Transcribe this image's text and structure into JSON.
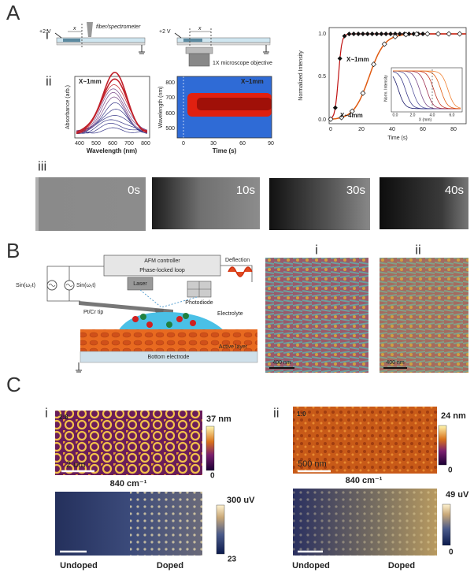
{
  "panel_a": {
    "label": "A",
    "i": {
      "label": "i",
      "setup_fiber": {
        "voltage": "+2 V",
        "x": "x",
        "probe": "fiber/spectrometer"
      },
      "setup_microscope": {
        "voltage": "+2 V",
        "x": "x",
        "objective": "1X microscope objective"
      }
    },
    "ii": {
      "label": "ii",
      "absorbance": {
        "annotation": "X~1mm",
        "y_label": "Absorbance (arb.)",
        "x_label": "Wavelength (nm)",
        "x_ticks": [
          "400",
          "500",
          "600",
          "700",
          "800"
        ]
      },
      "heatmap": {
        "annotation": "X~1mm",
        "y_label": "Wavelength (nm)",
        "x_label": "Time (s)",
        "y_ticks": [
          "800",
          "700",
          "600",
          "500"
        ],
        "x_ticks": [
          "0",
          "30",
          "60",
          "90"
        ]
      }
    },
    "kinetics": {
      "y_label": "Normalized Intensity",
      "x_label": "Time (s)",
      "y_ticks": [
        "1.0",
        "0.5",
        "0.0"
      ],
      "x_ticks": [
        "0",
        "20",
        "40",
        "60",
        "80"
      ],
      "annotation_near": "X~1mm",
      "annotation_far": "X~4mm",
      "inset": {
        "y_label": "Norm. Intensity",
        "x_label": "X (mm)",
        "x_ticks": [
          "0.0",
          "2.0",
          "4.0",
          "6.0"
        ]
      }
    },
    "iii": {
      "label": "iii",
      "frames": [
        "0s",
        "10s",
        "30s",
        "40s"
      ]
    }
  },
  "panel_b": {
    "label": "B",
    "schematic": {
      "controller": "AFM controller",
      "loop": "Phase-locked loop",
      "deflection": "Deflection",
      "drive_2": "Sin(ω₂t)",
      "drive_1": "Sin(ω₁t)",
      "laser": "Laser",
      "photodiode": "Photodiode",
      "tip": "Pt/Cr tip",
      "electrolyte": "Electrolyte",
      "active_layer": "Active layer",
      "electrode": "Bottom electrode"
    },
    "image_i": {
      "label": "i",
      "scale_bar": "400 nm"
    },
    "image_ii": {
      "label": "ii",
      "scale_bar": "400 nm"
    }
  },
  "panel_c": {
    "label": "C",
    "i": {
      "label": "i",
      "topography": {
        "ratio": "2:8",
        "scale_bar": "2 um",
        "color_max": "37 nm",
        "color_min": "0"
      },
      "ir": {
        "wavenumber": "840 cm⁻¹",
        "color_max": "300 uV",
        "color_min": "23",
        "left": "Undoped",
        "right": "Doped"
      }
    },
    "ii": {
      "label": "ii",
      "topography": {
        "ratio": "1:0",
        "scale_bar": "500 nm",
        "color_max": "24 nm",
        "color_min": "0"
      },
      "ir": {
        "wavenumber": "840 cm⁻¹",
        "color_max": "49 uV",
        "color_min": "0",
        "left": "Undoped",
        "right": "Doped"
      }
    }
  }
}
